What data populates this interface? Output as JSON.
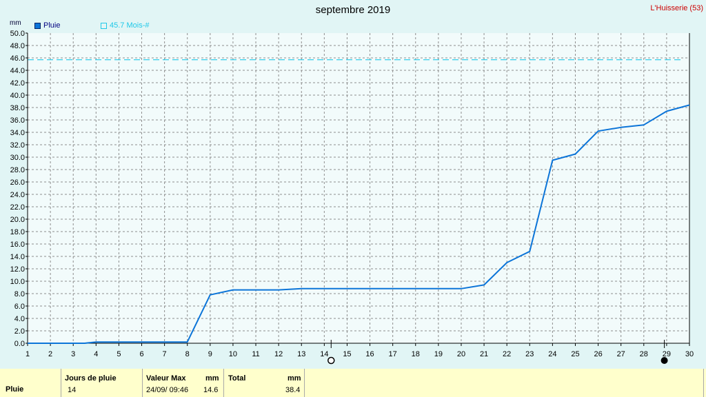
{
  "header": {
    "title": "septembre 2019",
    "station": "L'Huisserie (53)",
    "unit": "mm"
  },
  "legend": {
    "series_label": "Pluie",
    "series_color": "#0b74d8",
    "reference_label": "45.7 Mois-#",
    "reference_color": "#1ec8e8"
  },
  "chart_data": {
    "type": "line",
    "title": "septembre 2019",
    "ylabel": "mm",
    "xlim": [
      1,
      30
    ],
    "ylim": [
      0,
      50
    ],
    "xticks": [
      "1",
      "2",
      "3",
      "4",
      "5",
      "6",
      "7",
      "8",
      "9",
      "10",
      "11",
      "12",
      "13",
      "14",
      "15",
      "16",
      "17",
      "18",
      "19",
      "20",
      "21",
      "22",
      "23",
      "24",
      "25",
      "26",
      "27",
      "28",
      "29",
      "30"
    ],
    "yticks": [
      "0.0",
      "2.0",
      "4.0",
      "6.0",
      "8.0",
      "10.0",
      "12.0",
      "14.0",
      "16.0",
      "18.0",
      "20.0",
      "22.0",
      "24.0",
      "26.0",
      "28.0",
      "30.0",
      "32.0",
      "34.0",
      "36.0",
      "38.0",
      "40.0",
      "42.0",
      "44.0",
      "46.0",
      "48.0",
      "50.0"
    ],
    "grid": true,
    "legend_position": "top-left",
    "series": [
      {
        "name": "Pluie",
        "color": "#0b74d8",
        "x": [
          1,
          3.5,
          4,
          8,
          9,
          10,
          12,
          13,
          20,
          21,
          22,
          23,
          24,
          25,
          26,
          27,
          28,
          29,
          30
        ],
        "values": [
          0,
          0,
          0.2,
          0.2,
          7.8,
          8.6,
          8.6,
          8.8,
          8.8,
          9.4,
          13.0,
          14.8,
          29.5,
          30.5,
          34.2,
          34.8,
          35.2,
          37.4,
          38.4
        ]
      }
    ],
    "reference_line": {
      "label": "45.7 Mois-#",
      "value": 45.7
    },
    "moon_phases": [
      {
        "day": 14.3,
        "phase": "full"
      },
      {
        "day": 28.9,
        "phase": "new"
      }
    ]
  },
  "footer": {
    "row_label": "Pluie",
    "col1_header": "Jours de pluie",
    "col1_value": "14",
    "col2_header": "Valeur Max",
    "col2_unit": "mm",
    "col2_date": "24/09/ 09:46",
    "col2_value": "14.6",
    "col3_header": "Total",
    "col3_unit": "mm",
    "col3_value": "38.4"
  }
}
